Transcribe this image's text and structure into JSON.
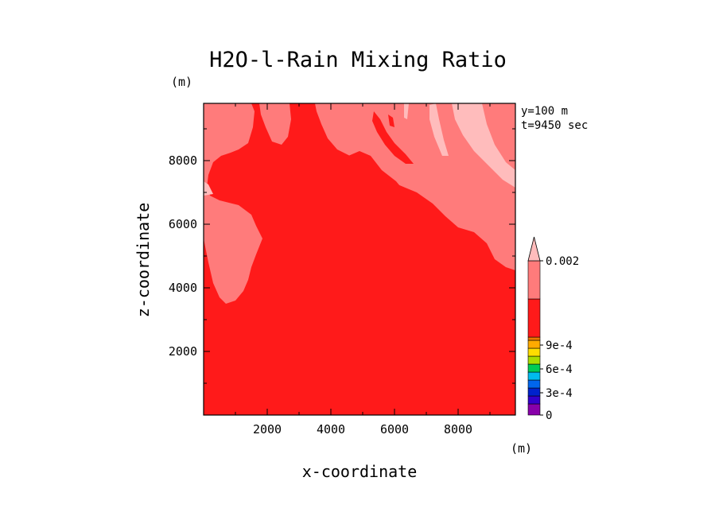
{
  "chart_data": {
    "type": "heatmap",
    "title": "H2O-l-Rain Mixing Ratio",
    "xlabel": "x-coordinate",
    "ylabel": "z-coordinate",
    "x_unit": "(m)",
    "y_unit": "(m)",
    "info": [
      "y=100 m",
      "t=9450 sec"
    ],
    "xlim": [
      0,
      9800
    ],
    "ylim": [
      0,
      9800
    ],
    "x_ticks": [
      2000,
      4000,
      6000,
      8000
    ],
    "y_ticks": [
      2000,
      4000,
      6000,
      8000
    ],
    "x_tick_labels": [
      "2000",
      "4000",
      "6000",
      "8000"
    ],
    "y_tick_labels": [
      "2000",
      "4000",
      "6000",
      "8000"
    ],
    "levels": [
      {
        "from": 0,
        "to": 0.0001,
        "color": "#8800aa"
      },
      {
        "from": 0.0001,
        "to": 0.0002,
        "color": "#3300cc"
      },
      {
        "from": 0.0002,
        "to": 0.0003,
        "color": "#0022cc"
      },
      {
        "from": 0.0003,
        "to": 0.0004,
        "color": "#0066ee"
      },
      {
        "from": 0.0004,
        "to": 0.0005,
        "color": "#00bbee"
      },
      {
        "from": 0.0005,
        "to": 0.0006,
        "color": "#00cc55"
      },
      {
        "from": 0.0006,
        "to": 0.0007,
        "color": "#aadd00"
      },
      {
        "from": 0.0007,
        "to": 0.0008,
        "color": "#ffdd00"
      },
      {
        "from": 0.0008,
        "to": 0.0009,
        "color": "#ffaa00"
      },
      {
        "from": 0.0009,
        "to": 0.001,
        "color": "#ee7700"
      },
      {
        "from": 0.001,
        "to": 0.0015,
        "color": "#ff1a1a"
      },
      {
        "from": 0.0015,
        "to": 0.002,
        "color": "#ff7b7b"
      },
      {
        "from": 0.002,
        "to": null,
        "color": "#ffbcbc"
      }
    ],
    "colorbar_labels": [
      {
        "value": 0.002,
        "text": "0.002"
      },
      {
        "value": 0.0009,
        "text": "9e-4"
      },
      {
        "value": 0.0006,
        "text": "6e-4"
      },
      {
        "value": 0.0003,
        "text": "3e-4"
      },
      {
        "value": 0,
        "text": "0"
      }
    ],
    "regions": [
      {
        "level": 0.0015,
        "description": "upper-left and right portions"
      },
      {
        "level": 0.002,
        "description": "small patches near top-right"
      },
      {
        "level": 0.001,
        "description": "background over most of the domain"
      }
    ]
  }
}
